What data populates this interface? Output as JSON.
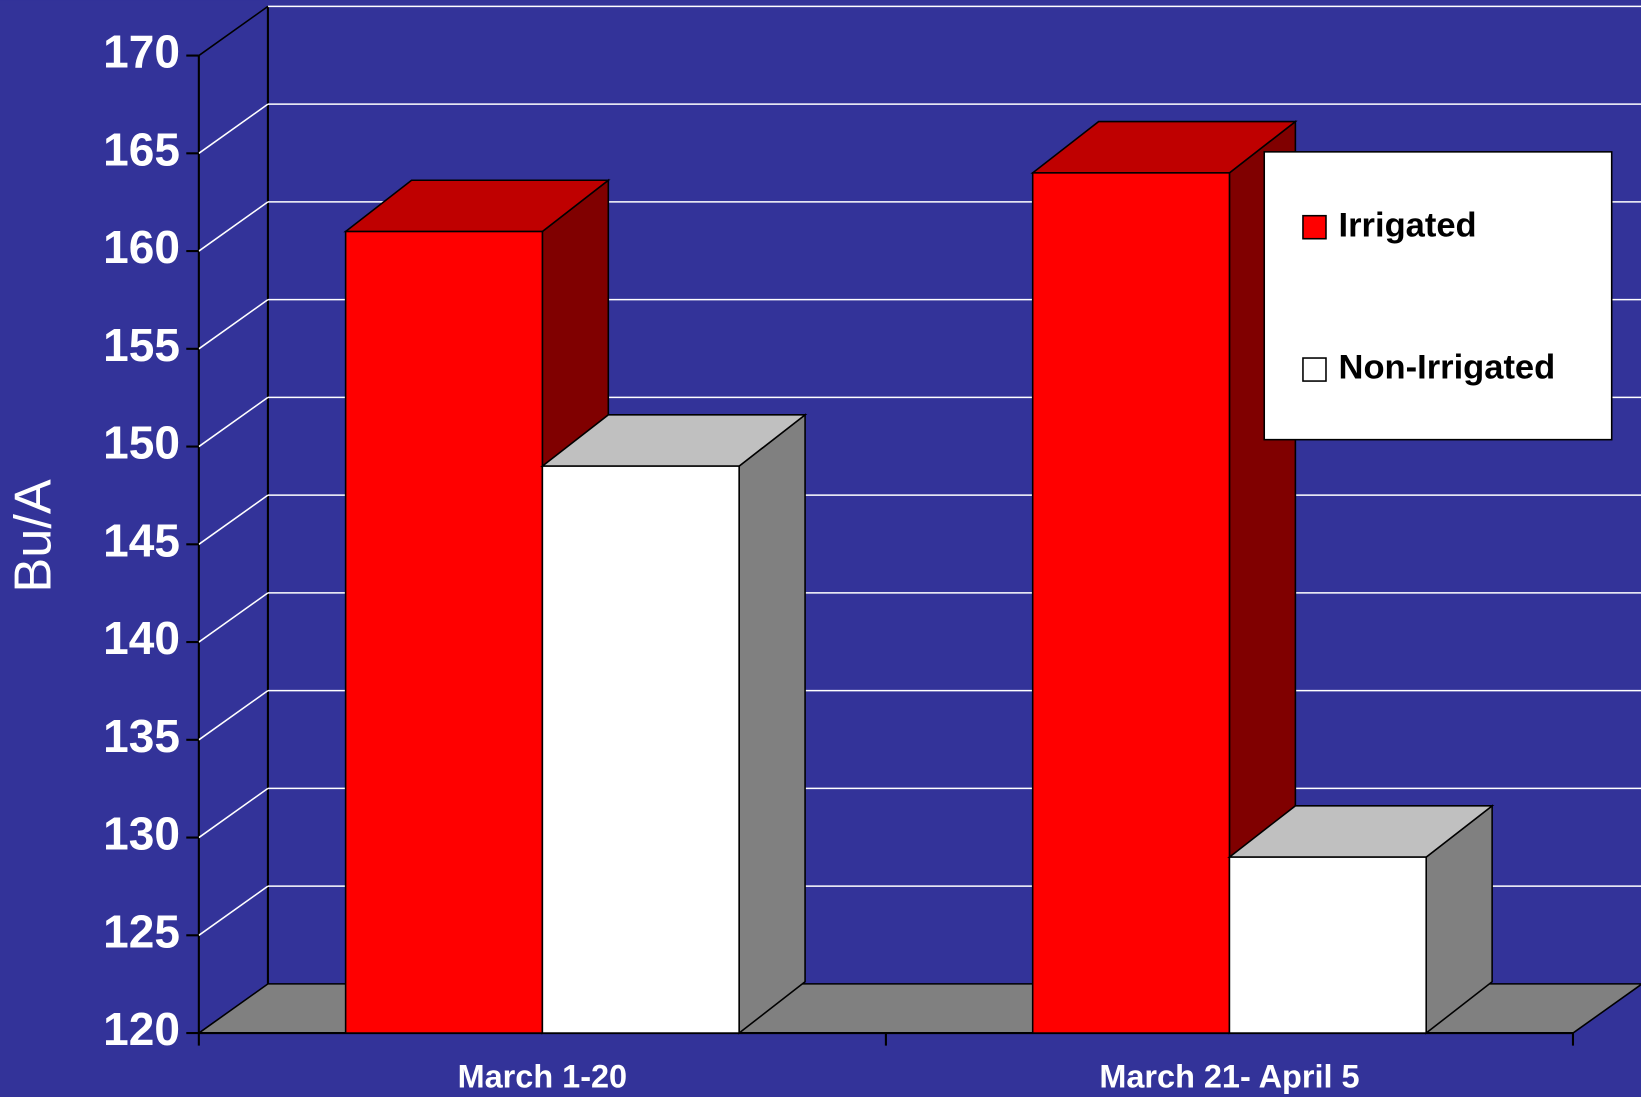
{
  "chart_data": {
    "type": "bar3d",
    "y_label": "Bu/A",
    "categories": [
      "March 1-20",
      "March 21- April 5"
    ],
    "series": [
      {
        "name": "Irrigated",
        "color": "#ff0000",
        "values": [
          161,
          164
        ]
      },
      {
        "name": "Non-Irrigated",
        "color": "#ffffff",
        "values": [
          149,
          129
        ]
      }
    ],
    "ylim": [
      120,
      170
    ],
    "yticks": [
      120,
      125,
      130,
      135,
      140,
      145,
      150,
      155,
      160,
      165,
      170
    ],
    "grid": true,
    "legend": "top-right",
    "background": "#333399"
  }
}
